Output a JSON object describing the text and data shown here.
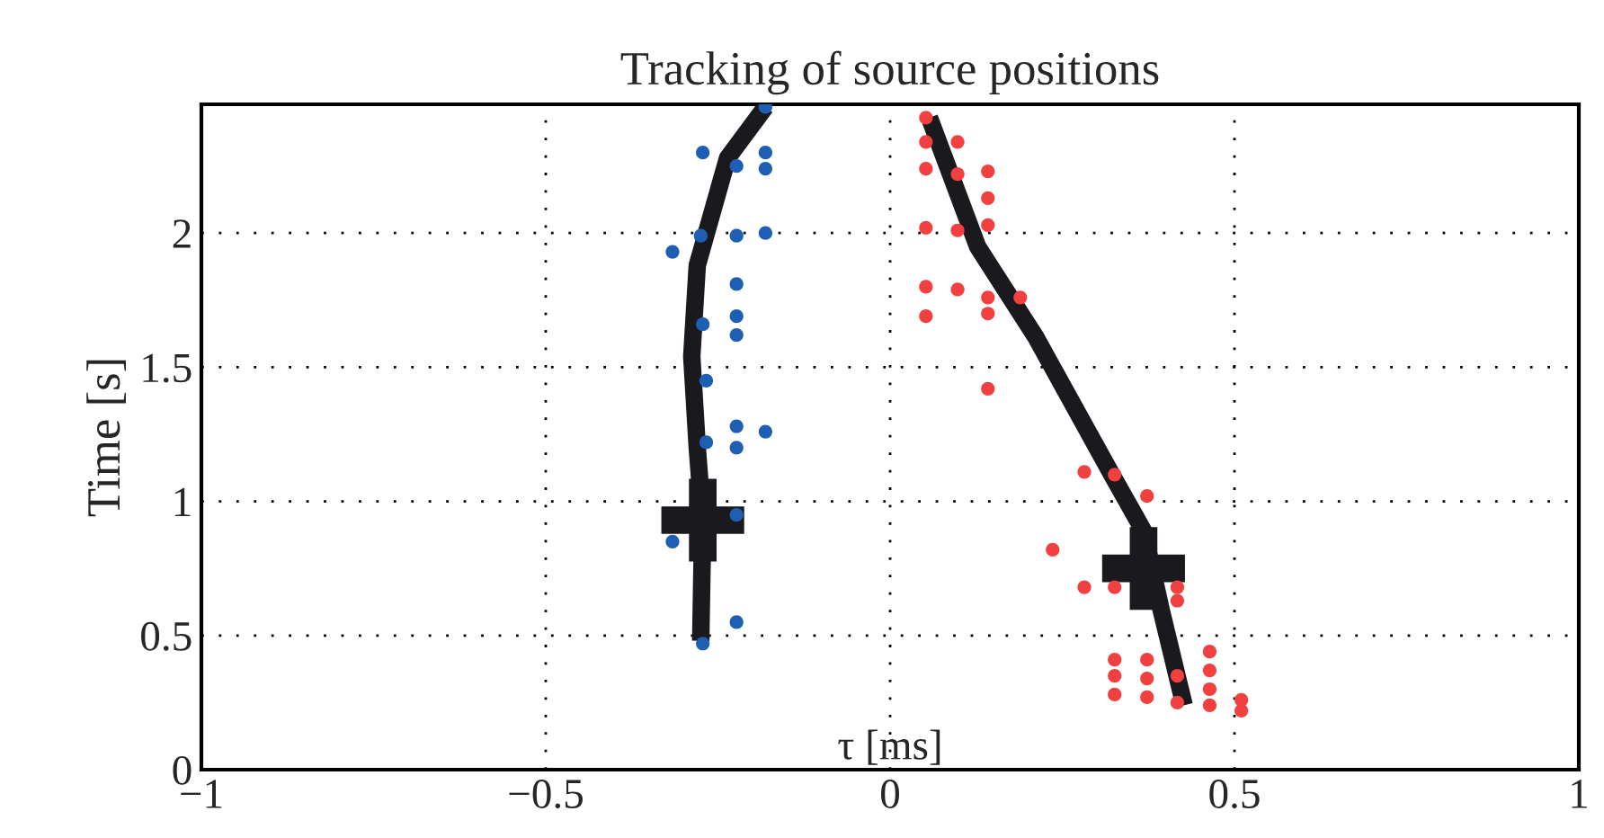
{
  "chart_data": {
    "type": "scatter",
    "title": "Tracking of source positions",
    "xlabel": "τ [ms]",
    "ylabel": "Time [s]",
    "xlim": [
      -1,
      1
    ],
    "ylim": [
      0,
      2.48
    ],
    "xticks": [
      {
        "value": -1,
        "label": "−1"
      },
      {
        "value": -0.5,
        "label": "−0.5"
      },
      0,
      0.5,
      1
    ],
    "yticks": [
      0,
      0.5,
      1,
      1.5,
      2
    ],
    "grid": true,
    "marker": "circle",
    "series": [
      {
        "color": "#1e5fb4",
        "x": [
          -0.181,
          -0.272,
          -0.223,
          -0.181,
          -0.181,
          -0.316,
          -0.275,
          -0.223,
          -0.181,
          -0.223,
          -0.272,
          -0.223,
          -0.223,
          -0.267,
          -0.223,
          -0.223,
          -0.181,
          -0.267,
          -0.223,
          -0.316,
          -0.223,
          -0.272
        ],
        "values": [
          2.47,
          2.3,
          2.25,
          2.3,
          2.24,
          1.93,
          1.99,
          1.99,
          2.0,
          1.81,
          1.66,
          1.69,
          1.62,
          1.45,
          1.28,
          1.2,
          1.26,
          1.22,
          0.95,
          0.85,
          0.55,
          0.47
        ]
      },
      {
        "color": "#f04040",
        "x": [
          0.052,
          0.052,
          0.098,
          0.052,
          0.098,
          0.098,
          0.142,
          0.142,
          0.142,
          0.052,
          0.052,
          0.052,
          0.098,
          0.142,
          0.142,
          0.189,
          0.142,
          0.282,
          0.326,
          0.373,
          0.236,
          0.282,
          0.326,
          0.417,
          0.417,
          0.326,
          0.326,
          0.326,
          0.373,
          0.373,
          0.373,
          0.417,
          0.417,
          0.464,
          0.464,
          0.464,
          0.464,
          0.51,
          0.51
        ],
        "values": [
          2.43,
          2.34,
          2.34,
          2.24,
          2.22,
          2.01,
          2.23,
          2.13,
          2.03,
          2.02,
          1.8,
          1.69,
          1.79,
          1.76,
          1.7,
          1.76,
          1.42,
          1.11,
          1.1,
          1.02,
          0.82,
          0.68,
          0.68,
          0.68,
          0.63,
          0.41,
          0.35,
          0.28,
          0.41,
          0.34,
          0.27,
          0.35,
          0.25,
          0.44,
          0.37,
          0.3,
          0.24,
          0.26,
          0.22
        ]
      },
      {
        "type": "line",
        "color": "#1a1a1e",
        "marker": "none",
        "line_style": "solid",
        "x": [
          -0.181,
          -0.236,
          -0.28,
          -0.288,
          -0.28,
          -0.272,
          -0.275
        ],
        "values": [
          2.47,
          2.28,
          1.88,
          1.54,
          1.2,
          0.93,
          0.48
        ]
      },
      {
        "type": "line",
        "color": "#1a1a1e",
        "marker": "none",
        "line_style": "solid",
        "x": [
          0.057,
          0.127,
          0.212,
          0.324,
          0.368,
          0.394,
          0.427
        ],
        "values": [
          2.43,
          1.95,
          1.61,
          1.09,
          0.89,
          0.59,
          0.24
        ]
      },
      {
        "type": "scatter",
        "color": "#1a1a1e",
        "marker": "cross",
        "x": [
          -0.272,
          0.368
        ],
        "values": [
          0.93,
          0.75
        ]
      }
    ]
  }
}
